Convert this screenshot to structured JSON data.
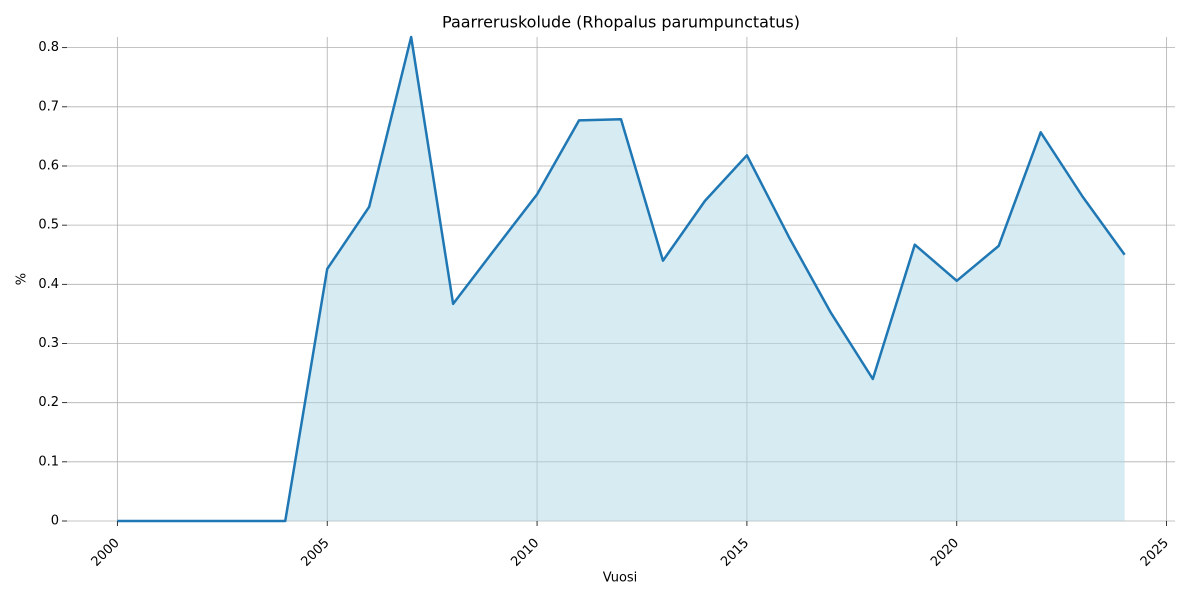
{
  "chart_data": {
    "type": "area",
    "title": "Paarreruskolude (Rhopalus parumpunctatus)",
    "x_label": "Vuosi",
    "y_label": "%",
    "x": [
      2000,
      2001,
      2002,
      2003,
      2004,
      2005,
      2006,
      2007,
      2008,
      2009,
      2010,
      2011,
      2012,
      2013,
      2014,
      2015,
      2016,
      2017,
      2018,
      2019,
      2020,
      2021,
      2022,
      2023,
      2024
    ],
    "values": [
      0,
      0,
      0,
      0,
      0,
      0.426,
      0.531,
      0.818,
      0.367,
      0.46,
      0.552,
      0.677,
      0.679,
      0.44,
      0.541,
      0.618,
      0.48,
      0.352,
      0.24,
      0.467,
      0.406,
      0.465,
      0.657,
      0.548,
      0.45
    ],
    "color": "#1f77b4",
    "fill_color": "#add8e6",
    "xlim": [
      1998.8,
      2025.2
    ],
    "xticks": [
      2000,
      2005,
      2010,
      2015,
      2020,
      2025
    ],
    "ylim": [
      0,
      0.818
    ],
    "yticks": [
      0,
      {
        "value": 0.1,
        "label": "0.1"
      },
      {
        "value": 0.2,
        "label": "0.2"
      },
      {
        "value": 0.3,
        "label": "0.3"
      },
      {
        "value": 0.4,
        "label": "0.4"
      },
      {
        "value": 0.5,
        "label": "0.5"
      },
      {
        "value": 0.6,
        "label": "0.6"
      },
      {
        "value": 0.7,
        "label": "0.7"
      },
      {
        "value": 0.8,
        "label": "0.8"
      }
    ],
    "grid": true
  }
}
